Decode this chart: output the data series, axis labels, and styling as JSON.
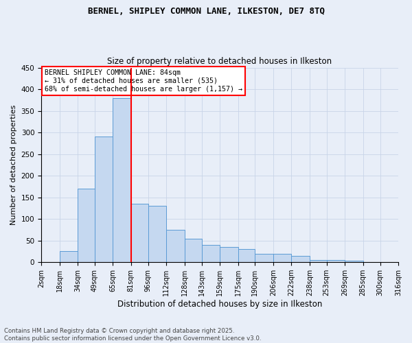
{
  "title_line1": "BERNEL, SHIPLEY COMMON LANE, ILKESTON, DE7 8TQ",
  "title_line2": "Size of property relative to detached houses in Ilkeston",
  "xlabel": "Distribution of detached houses by size in Ilkeston",
  "ylabel": "Number of detached properties",
  "bin_edges": [
    2,
    18,
    34,
    49,
    65,
    81,
    96,
    112,
    128,
    143,
    159,
    175,
    190,
    206,
    222,
    238,
    253,
    269,
    285,
    300,
    316
  ],
  "bar_heights": [
    0,
    25,
    170,
    290,
    380,
    135,
    130,
    75,
    55,
    40,
    35,
    30,
    20,
    20,
    15,
    5,
    5,
    3,
    0,
    0
  ],
  "bar_color": "#c5d8f0",
  "bar_edge_color": "#5b9bd5",
  "vline_x": 81,
  "vline_color": "red",
  "annotation_text": "BERNEL SHIPLEY COMMON LANE: 84sqm\n← 31% of detached houses are smaller (535)\n68% of semi-detached houses are larger (1,157) →",
  "annotation_box_color": "white",
  "annotation_border_color": "red",
  "ylim": [
    0,
    450
  ],
  "yticks": [
    0,
    50,
    100,
    150,
    200,
    250,
    300,
    350,
    400,
    450
  ],
  "grid_color": "#c8d4e8",
  "bg_color": "#e8eef8",
  "tick_labels": [
    "2sqm",
    "18sqm",
    "34sqm",
    "49sqm",
    "65sqm",
    "81sqm",
    "96sqm",
    "112sqm",
    "128sqm",
    "143sqm",
    "159sqm",
    "175sqm",
    "190sqm",
    "206sqm",
    "222sqm",
    "238sqm",
    "253sqm",
    "269sqm",
    "285sqm",
    "300sqm",
    "316sqm"
  ],
  "footnote": "Contains HM Land Registry data © Crown copyright and database right 2025.\nContains public sector information licensed under the Open Government Licence v3.0."
}
